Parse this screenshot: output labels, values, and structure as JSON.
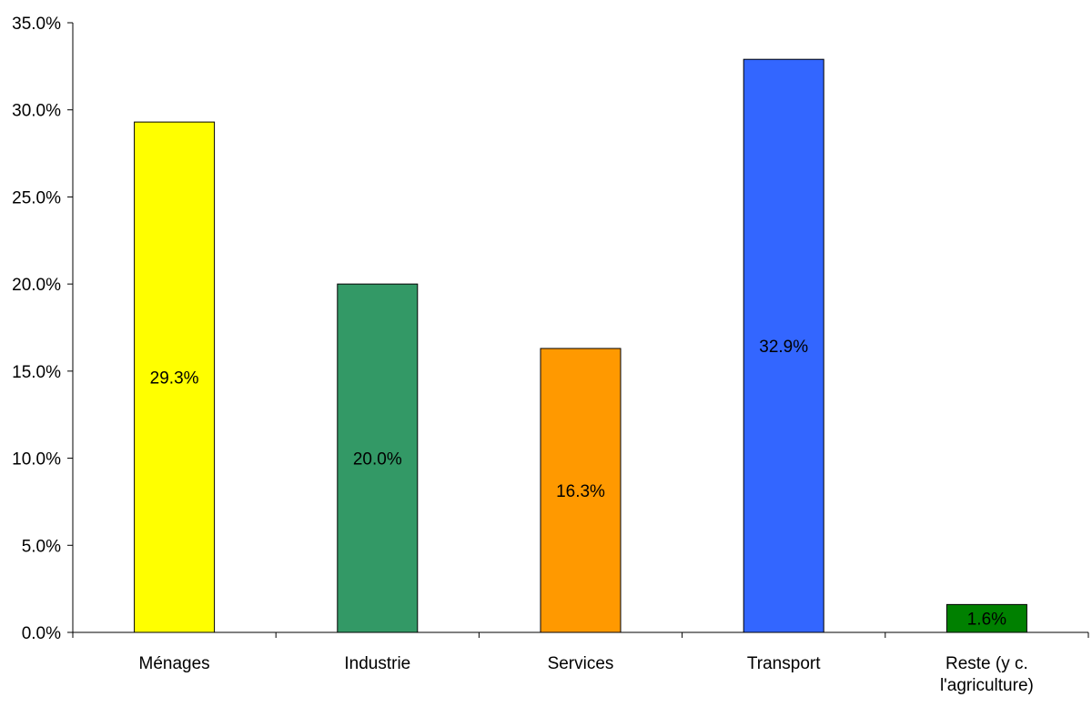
{
  "chart_data": {
    "type": "bar",
    "categories": [
      "Ménages",
      "Industrie",
      "Services",
      "Transport",
      "Reste (y c. l'agriculture)"
    ],
    "category_label_lines": [
      [
        "Ménages"
      ],
      [
        "Industrie"
      ],
      [
        "Services"
      ],
      [
        "Transport"
      ],
      [
        "Reste (y c.",
        "l'agriculture)"
      ]
    ],
    "values": [
      29.3,
      20.0,
      16.3,
      32.9,
      1.6
    ],
    "data_labels": [
      "29.3%",
      "20.0%",
      "16.3%",
      "32.9%",
      "1.6%"
    ],
    "colors": [
      "#FFFF00",
      "#339966",
      "#FF9900",
      "#3366FF",
      "#008000"
    ],
    "ylim": [
      0,
      35
    ],
    "yticks": [
      0,
      5,
      10,
      15,
      20,
      25,
      30,
      35
    ],
    "ytick_labels": [
      "0.0%",
      "5.0%",
      "10.0%",
      "15.0%",
      "20.0%",
      "25.0%",
      "30.0%",
      "35.0%"
    ],
    "grid": false,
    "legend": "none"
  }
}
